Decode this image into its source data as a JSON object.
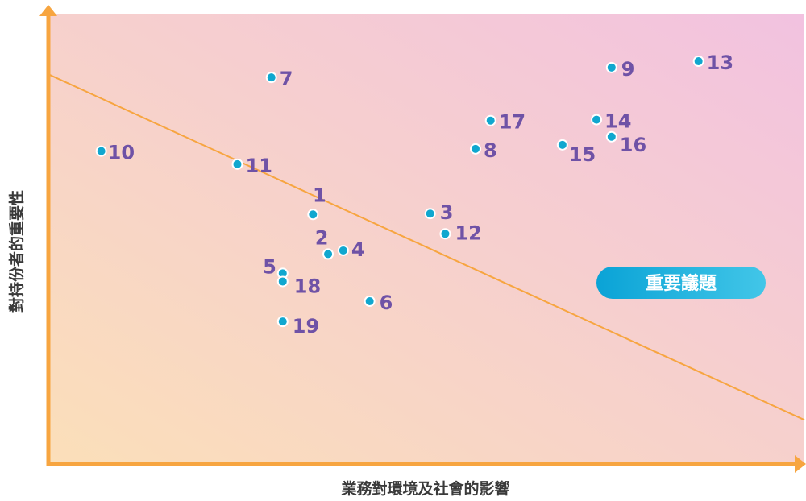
{
  "chart_data": {
    "type": "scatter",
    "xlabel": "業務對環境及社會的影響",
    "ylabel": "對持份者的重要性",
    "xlim": [
      0,
      100
    ],
    "ylim": [
      0,
      100
    ],
    "grid": false,
    "points": [
      {
        "label": "1",
        "x": 35.0,
        "y": 55.5
      },
      {
        "label": "2",
        "x": 37.0,
        "y": 46.7
      },
      {
        "label": "3",
        "x": 50.5,
        "y": 55.7
      },
      {
        "label": "4",
        "x": 39.0,
        "y": 47.5
      },
      {
        "label": "5",
        "x": 31.0,
        "y": 42.4
      },
      {
        "label": "6",
        "x": 42.5,
        "y": 36.2
      },
      {
        "label": "7",
        "x": 29.5,
        "y": 86.0
      },
      {
        "label": "8",
        "x": 56.5,
        "y": 70.1
      },
      {
        "label": "9",
        "x": 74.5,
        "y": 88.2
      },
      {
        "label": "10",
        "x": 7.0,
        "y": 69.6
      },
      {
        "label": "11",
        "x": 25.0,
        "y": 66.7
      },
      {
        "label": "12",
        "x": 52.5,
        "y": 51.2
      },
      {
        "label": "13",
        "x": 86.0,
        "y": 89.6
      },
      {
        "label": "14",
        "x": 72.5,
        "y": 76.6
      },
      {
        "label": "15",
        "x": 68.0,
        "y": 71.0
      },
      {
        "label": "16",
        "x": 74.5,
        "y": 72.8
      },
      {
        "label": "17",
        "x": 58.5,
        "y": 76.4
      },
      {
        "label": "18",
        "x": 31.0,
        "y": 40.6
      },
      {
        "label": "19",
        "x": 31.0,
        "y": 31.7
      }
    ],
    "threshold_line": {
      "x1": 0,
      "y1": 86.7,
      "x2": 100,
      "y2": 9.8
    },
    "badge": "重要議題"
  },
  "colors": {
    "axis": "#f7a540",
    "line": "#f7a540",
    "point": "#10a7cf",
    "point_stroke": "#ffffff",
    "label": "#6f52a6",
    "badge_start": "#0aa3d6",
    "badge_end": "#42c6e8",
    "bg_top_right": "#f2c2e0",
    "bg_bottom_left": "#fbdfb9"
  }
}
